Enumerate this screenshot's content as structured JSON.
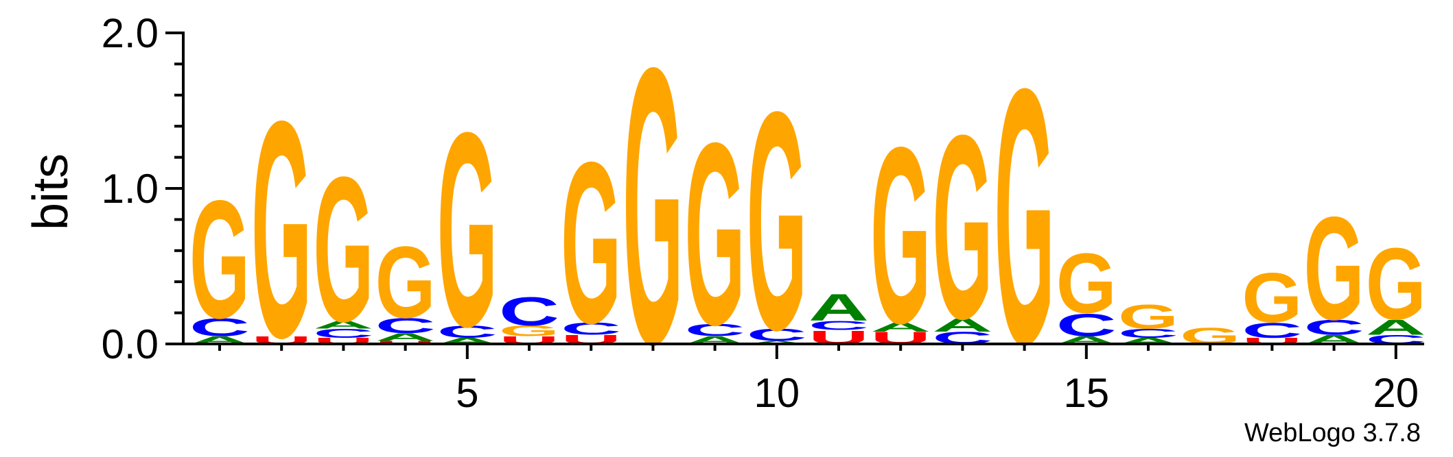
{
  "chart_data": {
    "type": "sequence-logo",
    "ylabel": "bits",
    "ylim": [
      0,
      2.0
    ],
    "yticks": [
      {
        "value": 0.0,
        "label": "0.0"
      },
      {
        "value": 1.0,
        "label": "1.0"
      },
      {
        "value": 2.0,
        "label": "2.0"
      }
    ],
    "xticks": [
      {
        "position": 5,
        "label": "5"
      },
      {
        "position": 10,
        "label": "10"
      },
      {
        "position": 15,
        "label": "15"
      },
      {
        "position": 20,
        "label": "20"
      }
    ],
    "positions": [
      1,
      2,
      3,
      4,
      5,
      6,
      7,
      8,
      9,
      10,
      11,
      12,
      13,
      14,
      15,
      16,
      17,
      18,
      19,
      20
    ],
    "colors": {
      "G": "#FFA500",
      "C": "#0000FF",
      "A": "#008000",
      "U": "#FF0000"
    },
    "stacks": [
      [
        [
          "A",
          0.05
        ],
        [
          "C",
          0.12
        ],
        [
          "G",
          0.79
        ]
      ],
      [
        [
          "U",
          0.05
        ],
        [
          "G",
          1.45
        ]
      ],
      [
        [
          "U",
          0.04
        ],
        [
          "C",
          0.06
        ],
        [
          "A",
          0.05
        ],
        [
          "G",
          0.97
        ]
      ],
      [
        [
          "U",
          0.02
        ],
        [
          "A",
          0.05
        ],
        [
          "C",
          0.1
        ],
        [
          "G",
          0.48
        ]
      ],
      [
        [
          "A",
          0.04
        ],
        [
          "C",
          0.08
        ],
        [
          "G",
          1.3
        ]
      ],
      [
        [
          "U",
          0.05
        ],
        [
          "G",
          0.07
        ],
        [
          "C",
          0.19
        ]
      ],
      [
        [
          "U",
          0.06
        ],
        [
          "C",
          0.08
        ],
        [
          "G",
          1.08
        ]
      ],
      [
        [
          "A",
          0.01
        ],
        [
          "G",
          1.85
        ]
      ],
      [
        [
          "A",
          0.05
        ],
        [
          "C",
          0.08
        ],
        [
          "G",
          1.22
        ]
      ],
      [
        [
          "A",
          0.02
        ],
        [
          "C",
          0.08
        ],
        [
          "G",
          1.46
        ]
      ],
      [
        [
          "U",
          0.09
        ],
        [
          "C",
          0.06
        ],
        [
          "A",
          0.18
        ]
      ],
      [
        [
          "U",
          0.08
        ],
        [
          "A",
          0.06
        ],
        [
          "G",
          1.18
        ]
      ],
      [
        [
          "C",
          0.08
        ],
        [
          "A",
          0.09
        ],
        [
          "G",
          1.23
        ]
      ],
      [
        [
          "A",
          0.01
        ],
        [
          "G",
          1.71
        ]
      ],
      [
        [
          "A",
          0.05
        ],
        [
          "C",
          0.15
        ],
        [
          "G",
          0.4
        ]
      ],
      [
        [
          "A",
          0.04
        ],
        [
          "C",
          0.06
        ],
        [
          "G",
          0.16
        ]
      ],
      [
        [
          "G",
          0.11
        ]
      ],
      [
        [
          "U",
          0.04
        ],
        [
          "C",
          0.1
        ],
        [
          "G",
          0.33
        ]
      ],
      [
        [
          "A",
          0.06
        ],
        [
          "C",
          0.1
        ],
        [
          "G",
          0.69
        ]
      ],
      [
        [
          "C",
          0.06
        ],
        [
          "A",
          0.1
        ],
        [
          "G",
          0.48
        ]
      ]
    ]
  },
  "footer": "WebLogo 3.7.8"
}
